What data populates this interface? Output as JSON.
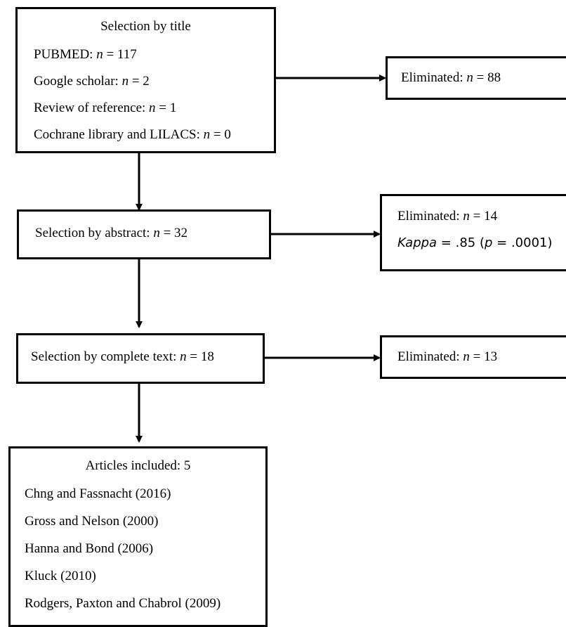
{
  "box1": {
    "title": "Selection by title",
    "lines": [
      {
        "label": "PUBMED: ",
        "var": "n",
        "rest": " = 117"
      },
      {
        "label": "Google scholar: ",
        "var": "n",
        "rest": " = 2"
      },
      {
        "label": "Review of reference: ",
        "var": "n",
        "rest": " = 1"
      },
      {
        "label": "Cochrane library and LILACS: ",
        "var": "n",
        "rest": " = 0"
      }
    ]
  },
  "elim1": {
    "label": "Eliminated: ",
    "var": "n",
    "rest": " = 88"
  },
  "box2": {
    "label": "Selection by abstract: ",
    "var": "n",
    "rest": " = 32"
  },
  "elim2": {
    "line1": {
      "label": "Eliminated: ",
      "var": "n",
      "rest": " = 14"
    },
    "line2": {
      "var": "Kappa",
      "mid": " = .85 (",
      "var2": "p",
      "rest": " = .0001)"
    }
  },
  "box3": {
    "label": "Selection by complete text: ",
    "var": "n",
    "rest": " = 18"
  },
  "elim3": {
    "label": "Eliminated: ",
    "var": "n",
    "rest": " = 13"
  },
  "box4": {
    "title": "Articles included: 5",
    "items": [
      "Chng and Fassnacht (2016)",
      "Gross and Nelson (2000)",
      "Hanna and Bond (2006)",
      "Kluck (2010)",
      "Rodgers, Paxton and Chabrol (2009)"
    ]
  }
}
